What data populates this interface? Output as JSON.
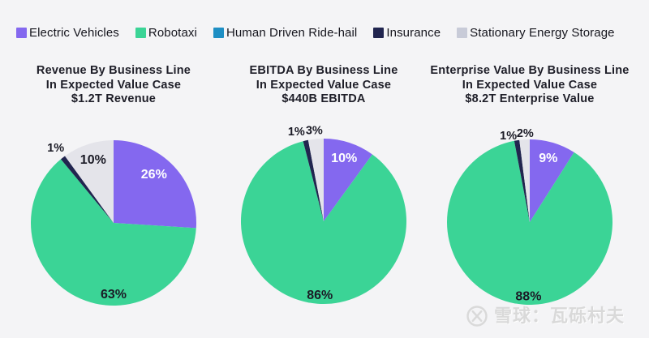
{
  "legend": {
    "position": "top",
    "items": [
      {
        "label": "Electric Vehicles",
        "color": "#8468ef"
      },
      {
        "label": "Robotaxi",
        "color": "#3bd496"
      },
      {
        "label": "Human Driven Ride-hail",
        "color": "#1e8fc4"
      },
      {
        "label": "Insurance",
        "color": "#21254f"
      },
      {
        "label": "Stationary Energy Storage",
        "color": "#c8cbd8"
      }
    ]
  },
  "chart_data": [
    {
      "type": "pie",
      "title": "Revenue By Business Line In Expected Value Case $1.2T Revenue",
      "title_lines": [
        "Revenue By Business Line",
        "In Expected Value Case",
        "$1.2T Revenue"
      ],
      "total_label": "$1.2T Revenue",
      "units": "percent",
      "slices": [
        {
          "name": "Electric Vehicles",
          "value": 26,
          "label": "26%",
          "color": "#8468ef",
          "inside": true,
          "label_color": "#ffffff",
          "la": 40,
          "lr": 0.76
        },
        {
          "name": "Robotaxi",
          "value": 63,
          "label": "63%",
          "color": "#3bd496",
          "inside": true,
          "label_color": "#1b1b26",
          "la": 180,
          "lr": 0.87
        },
        {
          "name": "Insurance",
          "value": 1,
          "label": "1%",
          "color": "#21254f",
          "inside": false,
          "label_color": "#1b1b26",
          "lr": 1.14
        },
        {
          "name": "Stationary Energy Storage",
          "value": 10,
          "label": "10%",
          "color": "#e4e4ea",
          "inside": true,
          "label_color": "#1b1b26",
          "lr": 0.8
        }
      ]
    },
    {
      "type": "pie",
      "title": "EBITDA By Business Line In Expected Value Case $440B EBITDA",
      "title_lines": [
        "EBITDA By Business Line",
        "In Expected Value Case",
        "$440B EBITDA"
      ],
      "total_label": "$440B EBITDA",
      "units": "percent",
      "slices": [
        {
          "name": "Electric Vehicles",
          "value": 10,
          "label": "10%",
          "color": "#8468ef",
          "inside": true,
          "label_color": "#ffffff",
          "lr": 0.8
        },
        {
          "name": "Robotaxi",
          "value": 86,
          "label": "86%",
          "color": "#3bd496",
          "inside": true,
          "label_color": "#1b1b26",
          "la": 183,
          "lr": 0.9
        },
        {
          "name": "Insurance",
          "value": 1,
          "label": "1%",
          "color": "#21254f",
          "inside": false,
          "label_color": "#1b1b26",
          "la": 343,
          "lr": 1.13
        },
        {
          "name": "Stationary Energy Storage",
          "value": 3,
          "label": "3%",
          "color": "#e4e4ea",
          "inside": false,
          "label_color": "#1b1b26",
          "la": 354,
          "lr": 1.1
        }
      ]
    },
    {
      "type": "pie",
      "title": "Enterprise Value By Business Line In Expected Value Case $8.2T Enterprise Value",
      "title_lines": [
        "Enterprise Value By Business Line",
        "In Expected Value Case",
        "$8.2T Enterprise Value"
      ],
      "total_label": "$8.2T Enterprise Value",
      "units": "percent",
      "slices": [
        {
          "name": "Electric Vehicles",
          "value": 9,
          "label": "9%",
          "color": "#8468ef",
          "inside": true,
          "label_color": "#ffffff",
          "lr": 0.8
        },
        {
          "name": "Robotaxi",
          "value": 88,
          "label": "88%",
          "color": "#3bd496",
          "inside": true,
          "label_color": "#1b1b26",
          "la": 181,
          "lr": 0.9
        },
        {
          "name": "Insurance",
          "value": 1,
          "label": "1%",
          "color": "#21254f",
          "inside": false,
          "label_color": "#1b1b26",
          "la": 346,
          "lr": 1.07
        },
        {
          "name": "Stationary Energy Storage",
          "value": 2,
          "label": "2%",
          "color": "#e4e4ea",
          "inside": false,
          "label_color": "#1b1b26",
          "la": 357,
          "lr": 1.07
        }
      ]
    }
  ],
  "watermark": {
    "text": "雪球：瓦砾村夫",
    "logo": "xueqiu-logo",
    "color": "#d9d9d9"
  }
}
